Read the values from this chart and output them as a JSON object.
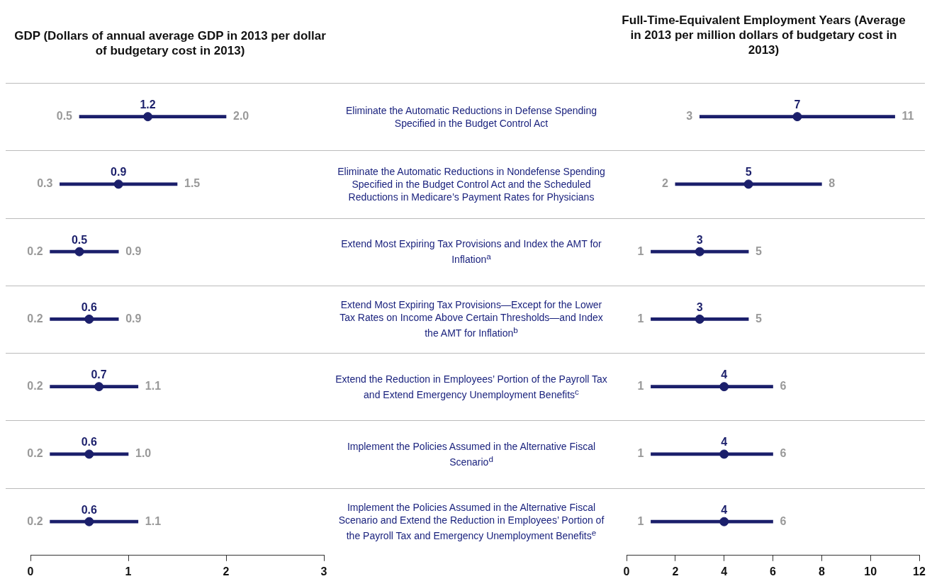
{
  "chart_data": [
    {
      "type": "bar",
      "title": "GDP (Dollars of annual average GDP in 2013 per dollar of budgetary cost in 2013)",
      "orientation": "horizontal",
      "marker": "circle",
      "grid": false,
      "legend": false,
      "categories": [
        "Eliminate the Automatic Reductions in Defense Spending Specified in the Budget Control Act",
        "Eliminate the Automatic Reductions in Nondefense Spending Specified in the Budget Control Act and the Scheduled Reductions in Medicare’s Payment Rates for Physicians",
        "Extend Most Expiring Tax Provisions and Index the AMT for Inflation$^{a}$",
        "Extend Most Expiring Tax Provisions—Except for the Lower Tax Rates on Income Above Certain Thresholds—and Index the AMT for Inflation$^{b}$",
        "Extend the Reduction in Employees’ Portion of the Payroll Tax and Extend Emergency Unemployment Benefits$^{c}$",
        "Implement the Policies Assumed in the Alternative Fiscal Scenario$^{d}$",
        "Implement the Policies Assumed in the Alternative Fiscal Scenario and Extend the Reduction in Employees’ Portion of the Payroll Tax and Emergency Unemployment Benefits$^{e}$"
      ],
      "series": [
        {
          "type": "bar",
          "color": "#1b1f6b",
          "base": [
            0.5,
            0.3,
            0.2,
            0.2,
            0.2,
            0.2,
            0.2
          ],
          "values": [
            1.5,
            1.2,
            0.7,
            0.7,
            0.9,
            0.8,
            0.9
          ]
        },
        {
          "type": "scatter",
          "color": "#1b1f6b",
          "values": [
            1.2,
            0.9,
            0.5,
            0.6,
            0.7,
            0.6,
            0.6
          ],
          "value_labels": [
            "1.2",
            "0.9",
            "0.5",
            "0.6",
            "0.7",
            "0.6",
            "0.6"
          ]
        }
      ],
      "xlim": [
        0,
        3
      ],
      "xticks": [
        0,
        1,
        2,
        3
      ],
      "annotations": [
        {
          "text": "0.5",
          "x": 0.5,
          "y": "Eliminate the Automatic Reductions in Defense Spending Specified in the Budget Control Act"
        },
        {
          "text": "2.0",
          "x": 2.0,
          "y": "Eliminate the Automatic Reductions in Defense Spending Specified in the Budget Control Act"
        },
        {
          "text": "0.3",
          "x": 0.3,
          "y": "Eliminate the Automatic Reductions in Nondefense Spending Specified in the Budget Control Act and the Scheduled Reductions in Medicare’s Payment Rates for Physicians"
        },
        {
          "text": "1.5",
          "x": 1.5,
          "y": "Eliminate the Automatic Reductions in Nondefense Spending Specified in the Budget Control Act and the Scheduled Reductions in Medicare’s Payment Rates for Physicians"
        },
        {
          "text": "0.2",
          "x": 0.2,
          "y": "Extend Most Expiring Tax Provisions and Index the AMT for Inflation$^{a}$"
        },
        {
          "text": "0.9",
          "x": 0.9,
          "y": "Extend Most Expiring Tax Provisions and Index the AMT for Inflation$^{a}$"
        },
        {
          "text": "0.2",
          "x": 0.2,
          "y": "Extend Most Expiring Tax Provisions—Except for the Lower Tax Rates on Income Above Certain Thresholds—and Index the AMT for Inflation$^{b}$"
        },
        {
          "text": "0.9",
          "x": 0.9,
          "y": "Extend Most Expiring Tax Provisions—Except for the Lower Tax Rates on Income Above Certain Thresholds—and Index the AMT for Inflation$^{b}$"
        },
        {
          "text": "0.2",
          "x": 0.2,
          "y": "Extend the Reduction in Employees’ Portion of the Payroll Tax and Extend Emergency Unemployment Benefits$^{c}$"
        },
        {
          "text": "1.1",
          "x": 1.1,
          "y": "Extend the Reduction in Employees’ Portion of the Payroll Tax and Extend Emergency Unemployment Benefits$^{c}$"
        },
        {
          "text": "0.2",
          "x": 0.2,
          "y": "Implement the Policies Assumed in the Alternative Fiscal Scenario$^{d}$"
        },
        {
          "text": "1.0",
          "x": 1.0,
          "y": "Implement the Policies Assumed in the Alternative Fiscal Scenario$^{d}$"
        },
        {
          "text": "0.2",
          "x": 0.2,
          "y": "Implement the Policies Assumed in the Alternative Fiscal Scenario and Extend the Reduction in Employees’ Portion of the Payroll Tax and Emergency Unemployment Benefits$^{e}$"
        },
        {
          "text": "1.1",
          "x": 1.1,
          "y": "Implement the Policies Assumed in the Alternative Fiscal Scenario and Extend the Reduction in Employees’ Portion of the Payroll Tax and Emergency Unemployment Benefits$^{e}$"
        }
      ]
    },
    {
      "type": "bar",
      "title": "Full-Time-Equivalent Employment Years (Average in 2013 per million dollars of budgetary cost in 2013)",
      "orientation": "horizontal",
      "marker": "circle",
      "grid": false,
      "legend": false,
      "tick_labels": "x",
      "categories": [
        "Eliminate the Automatic Reductions in Defense Spending Specified in the Budget Control Act",
        "Eliminate the Automatic Reductions in Nondefense Spending Specified in the Budget Control Act and the Scheduled Reductions in Medicare’s Payment Rates for Physicians",
        "Extend Most Expiring Tax Provisions and Index the AMT for Inflation$^{a}$",
        "Extend Most Expiring Tax Provisions—Except for the Lower Tax Rates on Income Above Certain Thresholds—and Index the AMT for Inflation$^{b}$",
        "Extend the Reduction in Employees’ Portion of the Payroll Tax and Extend Emergency Unemployment Benefits$^{c}$",
        "Implement the Policies Assumed in the Alternative Fiscal Scenario$^{d}$",
        "Implement the Policies Assumed in the Alternative Fiscal Scenario and Extend the Reduction in Employees’ Portion of the Payroll Tax and Emergency Unemployment Benefits$^{e}$"
      ],
      "series": [
        {
          "type": "bar",
          "color": "#1b1f6b",
          "base": [
            3,
            2,
            1,
            1,
            1,
            1,
            1
          ],
          "values": [
            8,
            6,
            4,
            4,
            5,
            5,
            5
          ]
        },
        {
          "type": "scatter",
          "color": "#1b1f6b",
          "values": [
            7,
            5,
            3,
            3,
            4,
            4,
            4
          ],
          "value_labels": [
            "7",
            "5",
            "3",
            "3",
            "4",
            "4",
            "4"
          ]
        }
      ],
      "xlim": [
        0,
        12
      ],
      "xticks": [
        0,
        2,
        4,
        6,
        8,
        10,
        12
      ],
      "annotations": [
        {
          "text": "3",
          "x": 3,
          "y": "Eliminate the Automatic Reductions in Defense Spending Specified in the Budget Control Act"
        },
        {
          "text": "11",
          "x": 11,
          "y": "Eliminate the Automatic Reductions in Defense Spending Specified in the Budget Control Act"
        },
        {
          "text": "2",
          "x": 2,
          "y": "Eliminate the Automatic Reductions in Nondefense Spending Specified in the Budget Control Act and the Scheduled Reductions in Medicare’s Payment Rates for Physicians"
        },
        {
          "text": "8",
          "x": 8,
          "y": "Eliminate the Automatic Reductions in Nondefense Spending Specified in the Budget Control Act and the Scheduled Reductions in Medicare’s Payment Rates for Physicians"
        },
        {
          "text": "1",
          "x": 1,
          "y": "Extend Most Expiring Tax Provisions and Index the AMT for Inflation$^{a}$"
        },
        {
          "text": "5",
          "x": 5,
          "y": "Extend Most Expiring Tax Provisions and Index the AMT for Inflation$^{a}$"
        },
        {
          "text": "1",
          "x": 1,
          "y": "Extend Most Expiring Tax Provisions—Except for the Lower Tax Rates on Income Above Certain Thresholds—and Index the AMT for Inflation$^{b}$"
        },
        {
          "text": "5",
          "x": 5,
          "y": "Extend Most Expiring Tax Provisions—Except for the Lower Tax Rates on Income Above Certain Thresholds—and Index the AMT for Inflation$^{b}$"
        },
        {
          "text": "1",
          "x": 1,
          "y": "Extend the Reduction in Employees’ Portion of the Payroll Tax and Extend Emergency Unemployment Benefits$^{c}$"
        },
        {
          "text": "6",
          "x": 6,
          "y": "Extend the Reduction in Employees’ Portion of the Payroll Tax and Extend Emergency Unemployment Benefits$^{c}$"
        },
        {
          "text": "1",
          "x": 1,
          "y": "Implement the Policies Assumed in the Alternative Fiscal Scenario$^{d}$"
        },
        {
          "text": "6",
          "x": 6,
          "y": "Implement the Policies Assumed in the Alternative Fiscal Scenario$^{d}$"
        },
        {
          "text": "1",
          "x": 1,
          "y": "Implement the Policies Assumed in the Alternative Fiscal Scenario and Extend the Reduction in Employees’ Portion of the Payroll Tax and Emergency Unemployment Benefits$^{e}$"
        },
        {
          "text": "6",
          "x": 6,
          "y": "Implement the Policies Assumed in the Alternative Fiscal Scenario and Extend the Reduction in Employees’ Portion of the Payroll Tax and Emergency Unemployment Benefits$^{e}$"
        }
      ]
    }
  ]
}
